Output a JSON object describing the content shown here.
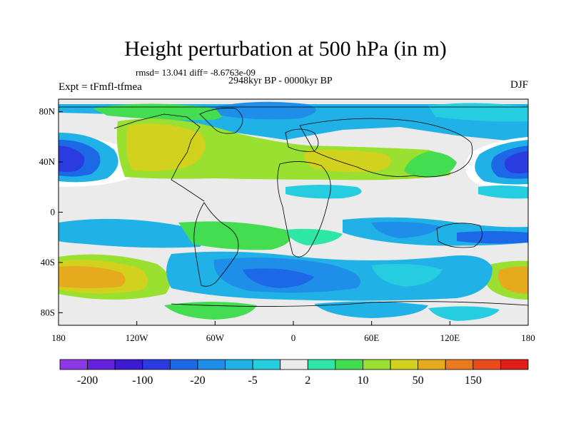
{
  "title": "Height perturbation at 500 hPa (in m)",
  "stats_line": "rmsd= 13.041  diff= -8.6763e-09",
  "period": "2948kyr BP - 0000kyr BP",
  "experiment": "Expt = tFmfl-tfmea",
  "season": "DJF",
  "lat_ticks": [
    "80N",
    "40N",
    "0",
    "40S",
    "80S"
  ],
  "lat_values": [
    80,
    40,
    0,
    -40,
    -80
  ],
  "lon_ticks": [
    "180",
    "120W",
    "60W",
    "0",
    "60E",
    "120E",
    "180"
  ],
  "lon_values": [
    -180,
    -120,
    -60,
    0,
    60,
    120,
    180
  ],
  "colorbar": {
    "colors": [
      "#8c38e6",
      "#6420dc",
      "#3c1ad2",
      "#2a3ce0",
      "#1c68e6",
      "#1e8ee8",
      "#20b2e6",
      "#26cde0",
      "#ebebeb",
      "#2ee6a6",
      "#44dc50",
      "#9ae030",
      "#d2d21e",
      "#e6aa1e",
      "#ea7a1e",
      "#e84c1c",
      "#e01e1a"
    ],
    "labels": [
      "-200",
      "-100",
      "-20",
      "-5",
      "2",
      "10",
      "50",
      "150"
    ]
  },
  "colors": {
    "land_outline": "#000000",
    "zero_band": "#ebebeb",
    "contour_line": "#ffffff"
  }
}
